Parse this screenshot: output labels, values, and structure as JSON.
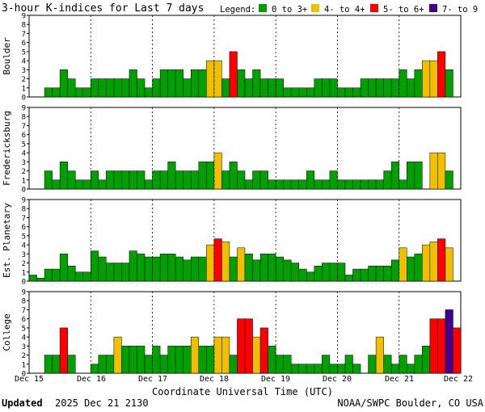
{
  "title": "3-hour K-indices for Last 7 days",
  "legend_label": "Legend:",
  "legend": [
    {
      "label": "0 to 3+",
      "color": "#00a000"
    },
    {
      "label": "4- to 4+",
      "color": "#f0c000"
    },
    {
      "label": "5- to 6+",
      "color": "#ff0000"
    },
    {
      "label": "7- to 9",
      "color": "#400090"
    }
  ],
  "footer": {
    "updated_label": "Updated",
    "updated_value": "2025 Dec 21 2130",
    "agency": "NOAA/SWPC Boulder, CO USA"
  },
  "chart_data": {
    "type": "bar",
    "xlabel": "Coordinate Universal Time (UTC)",
    "x_ticks": [
      "Dec 15",
      "Dec 16",
      "Dec 17",
      "Dec 18",
      "Dec 19",
      "Dec 20",
      "Dec 21",
      "Dec 22"
    ],
    "ylim": [
      0,
      9
    ],
    "y_ticks": [
      0,
      1,
      2,
      3,
      4,
      5,
      6,
      7,
      8,
      9
    ],
    "grid": "dashed vertical at day boundaries",
    "bins_per_day": 8,
    "color_thresholds": {
      "green_below": 3.67,
      "yellow_below": 4.67,
      "red_below": 6.67
    },
    "series": [
      {
        "name": "Boulder",
        "values": [
          0,
          0,
          1,
          1,
          3,
          2,
          1,
          1,
          2,
          2,
          2,
          2,
          2,
          3,
          2,
          1,
          2,
          3,
          3,
          3,
          2,
          3,
          3,
          4,
          4,
          2,
          5,
          3,
          2,
          3,
          2,
          2,
          2,
          1,
          1,
          1,
          1,
          2,
          2,
          2,
          1,
          1,
          1,
          2,
          2,
          2,
          2,
          2,
          3,
          2,
          3,
          4,
          4,
          5,
          3,
          0
        ]
      },
      {
        "name": "Fredericksburg",
        "values": [
          0,
          0,
          2,
          1,
          3,
          2,
          1,
          1,
          2,
          1,
          2,
          2,
          2,
          2,
          2,
          1,
          2,
          2,
          3,
          2,
          2,
          2,
          3,
          3,
          4,
          2,
          3,
          2,
          1,
          2,
          2,
          1,
          1,
          1,
          1,
          1,
          2,
          1,
          1,
          2,
          1,
          1,
          1,
          1,
          1,
          1,
          2,
          3,
          1,
          3,
          3,
          0,
          4,
          4,
          2,
          0
        ]
      },
      {
        "name": "Est. Planetary",
        "values": [
          0.67,
          0.33,
          1.33,
          1.33,
          3,
          1.67,
          1,
          1,
          3.33,
          2.67,
          2,
          2,
          2,
          3.33,
          3,
          2.67,
          2.67,
          3,
          3,
          2.67,
          2.33,
          2.67,
          2.67,
          4,
          4.67,
          4.33,
          2.67,
          3.67,
          3,
          2.33,
          3,
          3,
          2.67,
          2.33,
          2,
          1.33,
          1,
          1.67,
          2,
          2,
          2,
          0.67,
          1.33,
          1.33,
          1.67,
          1.67,
          1.67,
          2.33,
          3.67,
          2.67,
          3,
          4,
          4.33,
          4.67,
          3.67,
          0
        ]
      },
      {
        "name": "College",
        "values": [
          0,
          0,
          2,
          2,
          5,
          2,
          0,
          0,
          1,
          2,
          2,
          4,
          3,
          3,
          3,
          2,
          3,
          2,
          3,
          3,
          3,
          4,
          3,
          3,
          4,
          4,
          2,
          6,
          6,
          4,
          5,
          3,
          2,
          2,
          1,
          1,
          1,
          1,
          2,
          1,
          1,
          2,
          1,
          0,
          2,
          4,
          2,
          1,
          2,
          1,
          2,
          3,
          6,
          6,
          7,
          5
        ]
      }
    ]
  }
}
